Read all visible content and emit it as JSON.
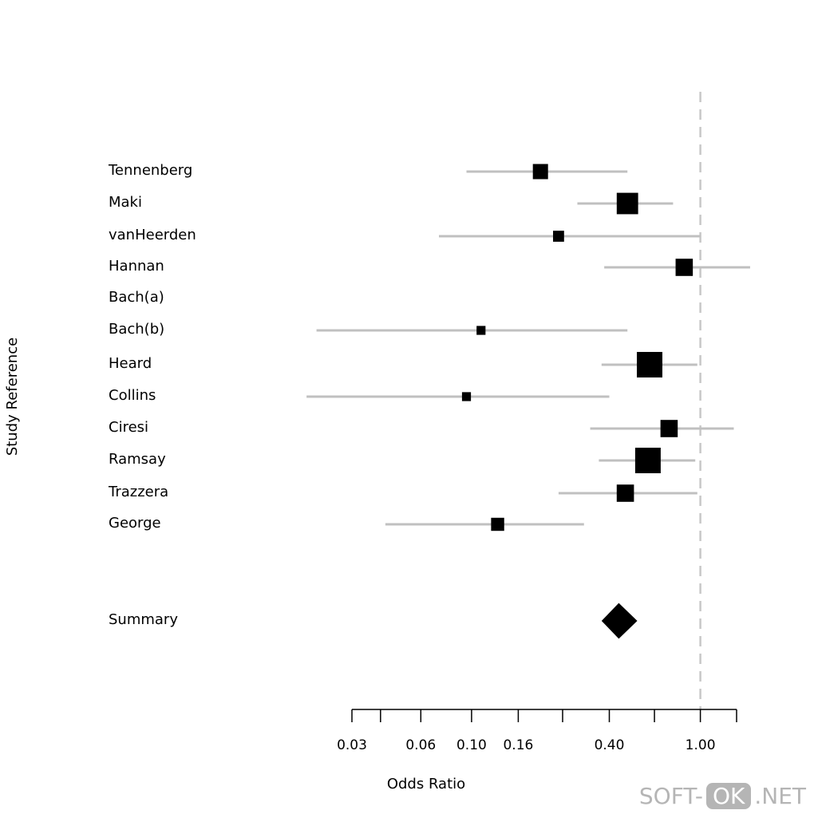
{
  "chart_data": {
    "type": "forest",
    "xlabel": "Odds Ratio",
    "ylabel": "Study Reference",
    "x_scale": "log",
    "xlim": [
      0.03,
      1.44
    ],
    "reference_line": 1.0,
    "x_ticks": [
      0.03,
      0.04,
      0.06,
      0.1,
      0.16,
      0.25,
      0.4,
      0.63,
      1.0,
      1.44
    ],
    "x_tick_labels": [
      {
        "value": 0.03,
        "label": "0.03"
      },
      {
        "value": 0.06,
        "label": "0.06"
      },
      {
        "value": 0.1,
        "label": "0.10"
      },
      {
        "value": 0.16,
        "label": "0.16"
      },
      {
        "value": 0.4,
        "label": "0.40"
      },
      {
        "value": 1.0,
        "label": "1.00"
      }
    ],
    "studies": [
      {
        "name": "Tennenberg",
        "or": 0.2,
        "lower": 0.095,
        "upper": 0.48,
        "weight": 5
      },
      {
        "name": "Maki",
        "or": 0.48,
        "lower": 0.29,
        "upper": 0.76,
        "weight": 8
      },
      {
        "name": "vanHeerden",
        "or": 0.24,
        "lower": 0.072,
        "upper": 1.0,
        "weight": 3
      },
      {
        "name": "Hannan",
        "or": 0.85,
        "lower": 0.38,
        "upper": 1.65,
        "weight": 6
      },
      {
        "name": "Bach(a)",
        "or": null,
        "lower": null,
        "upper": null,
        "weight": 0
      },
      {
        "name": "Bach(b)",
        "or": 0.11,
        "lower": 0.021,
        "upper": 0.48,
        "weight": 2
      },
      {
        "name": "Heard",
        "or": 0.6,
        "lower": 0.37,
        "upper": 0.97,
        "weight": 10
      },
      {
        "name": "Collins",
        "or": 0.095,
        "lower": 0.019,
        "upper": 0.4,
        "weight": 2
      },
      {
        "name": "Ciresi",
        "or": 0.73,
        "lower": 0.33,
        "upper": 1.4,
        "weight": 6
      },
      {
        "name": "Ramsay",
        "or": 0.59,
        "lower": 0.36,
        "upper": 0.95,
        "weight": 10
      },
      {
        "name": "Trazzera",
        "or": 0.47,
        "lower": 0.24,
        "upper": 0.97,
        "weight": 6
      },
      {
        "name": "George",
        "or": 0.13,
        "lower": 0.042,
        "upper": 0.31,
        "weight": 4
      }
    ],
    "summary": {
      "name": "Summary",
      "or": 0.44,
      "lower": 0.37,
      "upper": 0.53
    }
  },
  "watermark": {
    "left": "SOFT-",
    "badge": "OK",
    "right": ".NET"
  }
}
